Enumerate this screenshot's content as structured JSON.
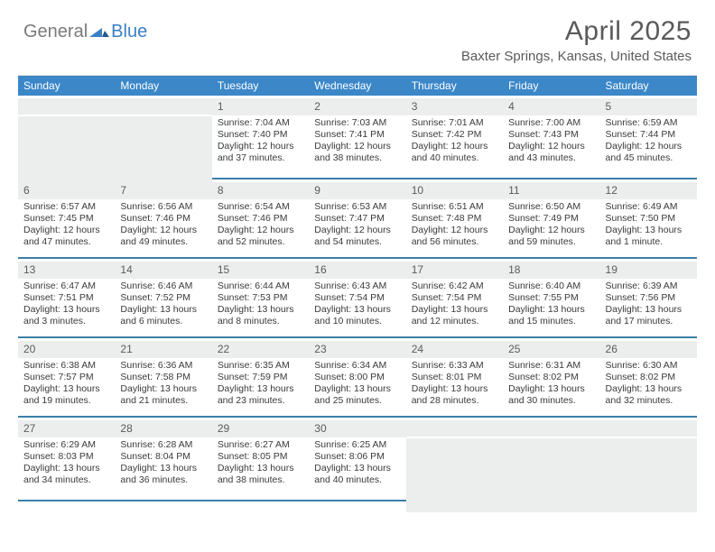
{
  "logo": {
    "general": "General",
    "blue": "Blue"
  },
  "title": "April 2025",
  "location": "Baxter Springs, Kansas, United States",
  "colors": {
    "header_bar": "#3b87c8",
    "week_divider": "#3b7fa8",
    "shaded_cell": "#eceded",
    "text": "#3a3a3a",
    "title_text": "#5a5a5a",
    "logo_gray": "#7a7a7a",
    "logo_blue": "#3b7fc4"
  },
  "dow": [
    "Sunday",
    "Monday",
    "Tuesday",
    "Wednesday",
    "Thursday",
    "Friday",
    "Saturday"
  ],
  "weeks": [
    [
      {
        "blank": true
      },
      {
        "blank": true
      },
      {
        "n": "1",
        "sunrise": "7:04 AM",
        "sunset": "7:40 PM",
        "daylight": "12 hours and 37 minutes."
      },
      {
        "n": "2",
        "sunrise": "7:03 AM",
        "sunset": "7:41 PM",
        "daylight": "12 hours and 38 minutes."
      },
      {
        "n": "3",
        "sunrise": "7:01 AM",
        "sunset": "7:42 PM",
        "daylight": "12 hours and 40 minutes."
      },
      {
        "n": "4",
        "sunrise": "7:00 AM",
        "sunset": "7:43 PM",
        "daylight": "12 hours and 43 minutes."
      },
      {
        "n": "5",
        "sunrise": "6:59 AM",
        "sunset": "7:44 PM",
        "daylight": "12 hours and 45 minutes."
      }
    ],
    [
      {
        "n": "6",
        "sunrise": "6:57 AM",
        "sunset": "7:45 PM",
        "daylight": "12 hours and 47 minutes."
      },
      {
        "n": "7",
        "sunrise": "6:56 AM",
        "sunset": "7:46 PM",
        "daylight": "12 hours and 49 minutes."
      },
      {
        "n": "8",
        "sunrise": "6:54 AM",
        "sunset": "7:46 PM",
        "daylight": "12 hours and 52 minutes."
      },
      {
        "n": "9",
        "sunrise": "6:53 AM",
        "sunset": "7:47 PM",
        "daylight": "12 hours and 54 minutes."
      },
      {
        "n": "10",
        "sunrise": "6:51 AM",
        "sunset": "7:48 PM",
        "daylight": "12 hours and 56 minutes."
      },
      {
        "n": "11",
        "sunrise": "6:50 AM",
        "sunset": "7:49 PM",
        "daylight": "12 hours and 59 minutes."
      },
      {
        "n": "12",
        "sunrise": "6:49 AM",
        "sunset": "7:50 PM",
        "daylight": "13 hours and 1 minute."
      }
    ],
    [
      {
        "n": "13",
        "sunrise": "6:47 AM",
        "sunset": "7:51 PM",
        "daylight": "13 hours and 3 minutes."
      },
      {
        "n": "14",
        "sunrise": "6:46 AM",
        "sunset": "7:52 PM",
        "daylight": "13 hours and 6 minutes."
      },
      {
        "n": "15",
        "sunrise": "6:44 AM",
        "sunset": "7:53 PM",
        "daylight": "13 hours and 8 minutes."
      },
      {
        "n": "16",
        "sunrise": "6:43 AM",
        "sunset": "7:54 PM",
        "daylight": "13 hours and 10 minutes."
      },
      {
        "n": "17",
        "sunrise": "6:42 AM",
        "sunset": "7:54 PM",
        "daylight": "13 hours and 12 minutes."
      },
      {
        "n": "18",
        "sunrise": "6:40 AM",
        "sunset": "7:55 PM",
        "daylight": "13 hours and 15 minutes."
      },
      {
        "n": "19",
        "sunrise": "6:39 AM",
        "sunset": "7:56 PM",
        "daylight": "13 hours and 17 minutes."
      }
    ],
    [
      {
        "n": "20",
        "sunrise": "6:38 AM",
        "sunset": "7:57 PM",
        "daylight": "13 hours and 19 minutes."
      },
      {
        "n": "21",
        "sunrise": "6:36 AM",
        "sunset": "7:58 PM",
        "daylight": "13 hours and 21 minutes."
      },
      {
        "n": "22",
        "sunrise": "6:35 AM",
        "sunset": "7:59 PM",
        "daylight": "13 hours and 23 minutes."
      },
      {
        "n": "23",
        "sunrise": "6:34 AM",
        "sunset": "8:00 PM",
        "daylight": "13 hours and 25 minutes."
      },
      {
        "n": "24",
        "sunrise": "6:33 AM",
        "sunset": "8:01 PM",
        "daylight": "13 hours and 28 minutes."
      },
      {
        "n": "25",
        "sunrise": "6:31 AM",
        "sunset": "8:02 PM",
        "daylight": "13 hours and 30 minutes."
      },
      {
        "n": "26",
        "sunrise": "6:30 AM",
        "sunset": "8:02 PM",
        "daylight": "13 hours and 32 minutes."
      }
    ],
    [
      {
        "n": "27",
        "sunrise": "6:29 AM",
        "sunset": "8:03 PM",
        "daylight": "13 hours and 34 minutes."
      },
      {
        "n": "28",
        "sunrise": "6:28 AM",
        "sunset": "8:04 PM",
        "daylight": "13 hours and 36 minutes."
      },
      {
        "n": "29",
        "sunrise": "6:27 AM",
        "sunset": "8:05 PM",
        "daylight": "13 hours and 38 minutes."
      },
      {
        "n": "30",
        "sunrise": "6:25 AM",
        "sunset": "8:06 PM",
        "daylight": "13 hours and 40 minutes."
      },
      {
        "blank": true
      },
      {
        "blank": true
      },
      {
        "blank": true
      }
    ]
  ],
  "labels": {
    "sunrise": "Sunrise:",
    "sunset": "Sunset:",
    "daylight": "Daylight:"
  }
}
